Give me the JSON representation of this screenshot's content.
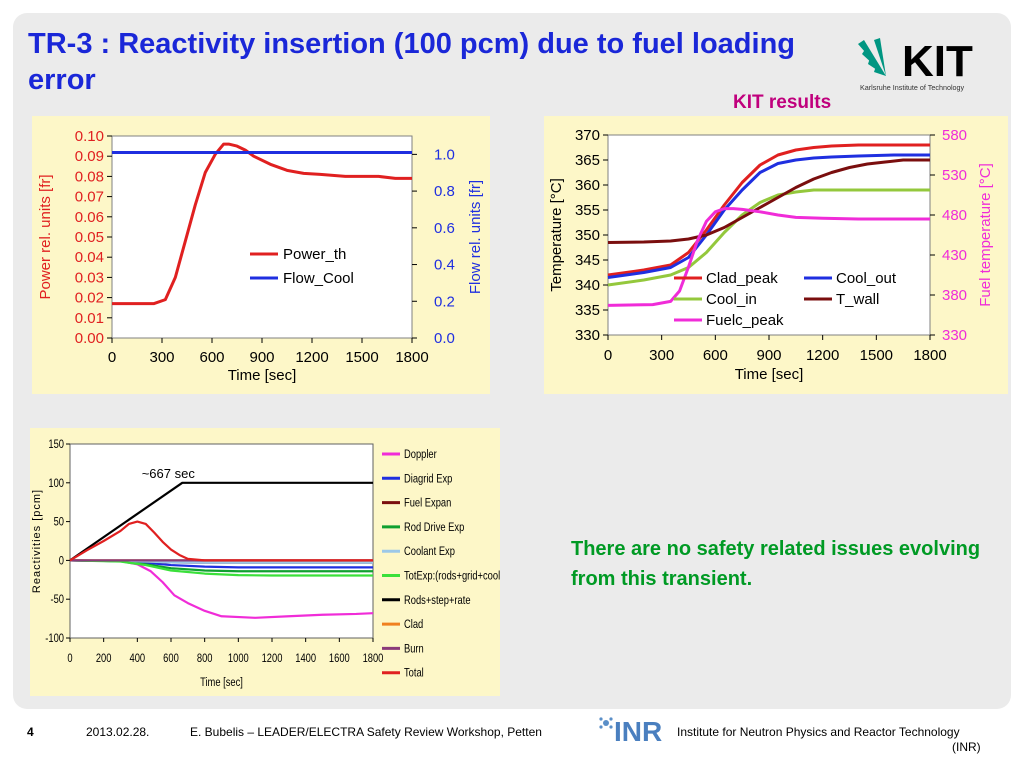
{
  "slide": {
    "title": "TR-3 : Reactivity insertion (100 pcm) due to fuel loading error",
    "kit_results_label": "KIT results",
    "logo_text": "KIT",
    "logo_subtitle": "Karlsruhe Institute of Technology",
    "conclusion": "There are no safety related issues evolving from this transient.",
    "footer": {
      "page": "4",
      "date": "2013.02.28.",
      "author": "E. Bubelis – LEADER/ELECTRA Safety Review Workshop, Petten",
      "institute_logo": "INR",
      "institute_line1": "Institute for Neutron Physics and Reactor Technology",
      "institute_line2": "(INR)"
    }
  },
  "colors": {
    "title": "#1a27d8",
    "kit_results": "#c0007d",
    "conclusion": "#009a24",
    "chart_bg": "#fdf7c8"
  },
  "chart_data": [
    {
      "type": "line",
      "xlabel": "Time [sec]",
      "ylabel_left": "Power rel. units  [fr]",
      "ylabel_right": "Flow rel. units  [fr]",
      "xlim": [
        0,
        1800
      ],
      "xticks": [
        "0",
        "300",
        "600",
        "900",
        "1200",
        "1500",
        "1800"
      ],
      "ylim_left": [
        0,
        0.1
      ],
      "yticks_left": [
        "0.10",
        "0.09",
        "0.08",
        "0.07",
        "0.06",
        "0.05",
        "0.04",
        "0.03",
        "0.02",
        "0.01",
        "0.00"
      ],
      "ylim_right": [
        0,
        1.1
      ],
      "yticks_right": [
        "1.0",
        "0.8",
        "0.6",
        "0.4",
        "0.2",
        "0.0"
      ],
      "legend": "center-right",
      "series": [
        {
          "name": "Power_th",
          "color": "#e02020",
          "axis": "left",
          "x": [
            0,
            150,
            250,
            320,
            380,
            440,
            500,
            560,
            620,
            670,
            700,
            750,
            800,
            850,
            950,
            1050,
            1150,
            1250,
            1400,
            1500,
            1600,
            1700,
            1800
          ],
          "y": [
            0.017,
            0.017,
            0.017,
            0.019,
            0.03,
            0.048,
            0.066,
            0.082,
            0.091,
            0.096,
            0.096,
            0.095,
            0.093,
            0.09,
            0.086,
            0.083,
            0.0815,
            0.081,
            0.08,
            0.08,
            0.08,
            0.079,
            0.079
          ]
        },
        {
          "name": "Flow_Cool",
          "color": "#1f2fe0",
          "axis": "right",
          "x": [
            0,
            1800
          ],
          "y": [
            1.01,
            1.01
          ]
        }
      ]
    },
    {
      "type": "line",
      "xlabel": "Time [sec]",
      "ylabel_left": "Temperature  [°C]",
      "ylabel_right": "Fuel temperature  [°C]",
      "xlim": [
        0,
        1800
      ],
      "xticks": [
        "0",
        "300",
        "600",
        "900",
        "1200",
        "1500",
        "1800"
      ],
      "ylim_left": [
        330,
        370
      ],
      "yticks_left": [
        "370",
        "365",
        "360",
        "355",
        "350",
        "345",
        "340",
        "335",
        "330"
      ],
      "ylim_right": [
        330,
        580
      ],
      "yticks_right": [
        "580",
        "530",
        "480",
        "430",
        "380",
        "330"
      ],
      "legend": "bottom-center",
      "series": [
        {
          "name": "Clad_peak",
          "color": "#e02020",
          "axis": "left",
          "x": [
            0,
            200,
            350,
            450,
            550,
            650,
            750,
            850,
            950,
            1050,
            1150,
            1250,
            1400,
            1600,
            1800
          ],
          "y": [
            342,
            343,
            344,
            346.5,
            351,
            356,
            360.5,
            364,
            366,
            367,
            367.5,
            367.8,
            368,
            368,
            368
          ]
        },
        {
          "name": "Cool_out",
          "color": "#1f2fe0",
          "axis": "left",
          "x": [
            0,
            200,
            350,
            450,
            550,
            650,
            750,
            850,
            950,
            1050,
            1150,
            1250,
            1400,
            1600,
            1800
          ],
          "y": [
            341.5,
            342.5,
            343.5,
            345.5,
            350,
            355,
            359,
            362.5,
            364.3,
            365,
            365.4,
            365.6,
            365.8,
            366,
            366
          ]
        },
        {
          "name": "Cool_in",
          "color": "#94c83c",
          "axis": "left",
          "x": [
            0,
            200,
            350,
            450,
            550,
            650,
            750,
            850,
            950,
            1050,
            1150,
            1300,
            1500,
            1800
          ],
          "y": [
            340,
            341,
            342,
            343.5,
            346.5,
            350.5,
            354,
            356.5,
            358,
            358.6,
            359,
            359,
            359,
            359
          ]
        },
        {
          "name": "T_wall",
          "color": "#7a0e0e",
          "axis": "left",
          "x": [
            0,
            200,
            350,
            450,
            550,
            650,
            750,
            850,
            950,
            1050,
            1150,
            1250,
            1350,
            1450,
            1550,
            1650,
            1800
          ],
          "y": [
            348.5,
            348.6,
            348.8,
            349.2,
            350,
            351.5,
            353.5,
            355.5,
            357.5,
            359.5,
            361.2,
            362.5,
            363.5,
            364.2,
            364.6,
            365,
            365
          ]
        },
        {
          "name": "Fuelc_peak",
          "color": "#f02cd8",
          "axis": "right",
          "x": [
            0,
            250,
            350,
            400,
            450,
            500,
            550,
            600,
            650,
            700,
            750,
            850,
            950,
            1050,
            1200,
            1400,
            1600,
            1800
          ],
          "y": [
            367,
            368,
            372,
            385,
            415,
            448,
            472,
            484,
            488,
            488,
            487,
            484,
            480,
            477,
            476,
            475,
            475,
            475
          ]
        }
      ]
    },
    {
      "type": "line",
      "xlabel": "Time [sec]",
      "ylabel": "Reactivities  [pcm]",
      "xlim": [
        0,
        1800
      ],
      "xticks": [
        "0",
        "200",
        "400",
        "600",
        "800",
        "1000",
        "1200",
        "1400",
        "1600",
        "1800"
      ],
      "ylim": [
        -100,
        150
      ],
      "yticks": [
        "150",
        "100",
        "50",
        "0",
        "-50",
        "-100"
      ],
      "annotations": [
        {
          "text": "~667 sec",
          "x": 667,
          "y": 100
        }
      ],
      "legend": "right",
      "series": [
        {
          "name": "Doppler",
          "color": "#f02cd8",
          "x": [
            0,
            300,
            400,
            480,
            550,
            620,
            700,
            800,
            900,
            1100,
            1300,
            1500,
            1700,
            1800
          ],
          "y": [
            0,
            -1,
            -5,
            -14,
            -28,
            -45,
            -55,
            -65,
            -72,
            -74,
            -72,
            -70,
            -69,
            -68
          ]
        },
        {
          "name": "Diagrid Exp",
          "color": "#1f2fe0",
          "x": [
            0,
            300,
            450,
            600,
            800,
            1000,
            1800
          ],
          "y": [
            0,
            -1,
            -3,
            -6,
            -8,
            -9,
            -9
          ]
        },
        {
          "name": "Fuel Expan",
          "color": "#7a0e0e",
          "x": [
            0,
            300,
            450,
            600,
            800,
            1000,
            1800
          ],
          "y": [
            0,
            -0.5,
            -1.5,
            -2.5,
            -3,
            -3,
            -3
          ]
        },
        {
          "name": "Rod Drive Exp",
          "color": "#10a030",
          "x": [
            0,
            300,
            450,
            600,
            800,
            1000,
            1800
          ],
          "y": [
            0,
            -1,
            -5,
            -10,
            -13,
            -14,
            -14
          ]
        },
        {
          "name": "Coolant Exp",
          "color": "#9cc8e8",
          "x": [
            0,
            300,
            450,
            600,
            800,
            1000,
            1800
          ],
          "y": [
            0,
            -0.5,
            -1.5,
            -2.5,
            -3,
            -3,
            -3
          ]
        },
        {
          "name": "TotExp:(rods+grid+cool)",
          "color": "#3ae03a",
          "x": [
            0,
            300,
            450,
            600,
            800,
            1000,
            1200,
            1800
          ],
          "y": [
            0,
            -1.5,
            -6,
            -13,
            -17,
            -19,
            -19.5,
            -19.5
          ]
        },
        {
          "name": "Rods+step+rate",
          "color": "#000000",
          "x": [
            0,
            667,
            1800
          ],
          "y": [
            0,
            100,
            100
          ]
        },
        {
          "name": "Clad",
          "color": "#f08020",
          "x": [
            0,
            1800
          ],
          "y": [
            0,
            0
          ]
        },
        {
          "name": "Burn",
          "color": "#8a3a7a",
          "x": [
            0,
            1800
          ],
          "y": [
            0,
            0
          ]
        },
        {
          "name": "Total",
          "color": "#e02020",
          "x": [
            0,
            100,
            200,
            300,
            350,
            400,
            450,
            500,
            550,
            600,
            650,
            700,
            800,
            1000,
            1200,
            1800
          ],
          "y": [
            0,
            13,
            25,
            38,
            47,
            50,
            47,
            36,
            24,
            14,
            7,
            2,
            0,
            0,
            0,
            0
          ]
        }
      ]
    }
  ]
}
